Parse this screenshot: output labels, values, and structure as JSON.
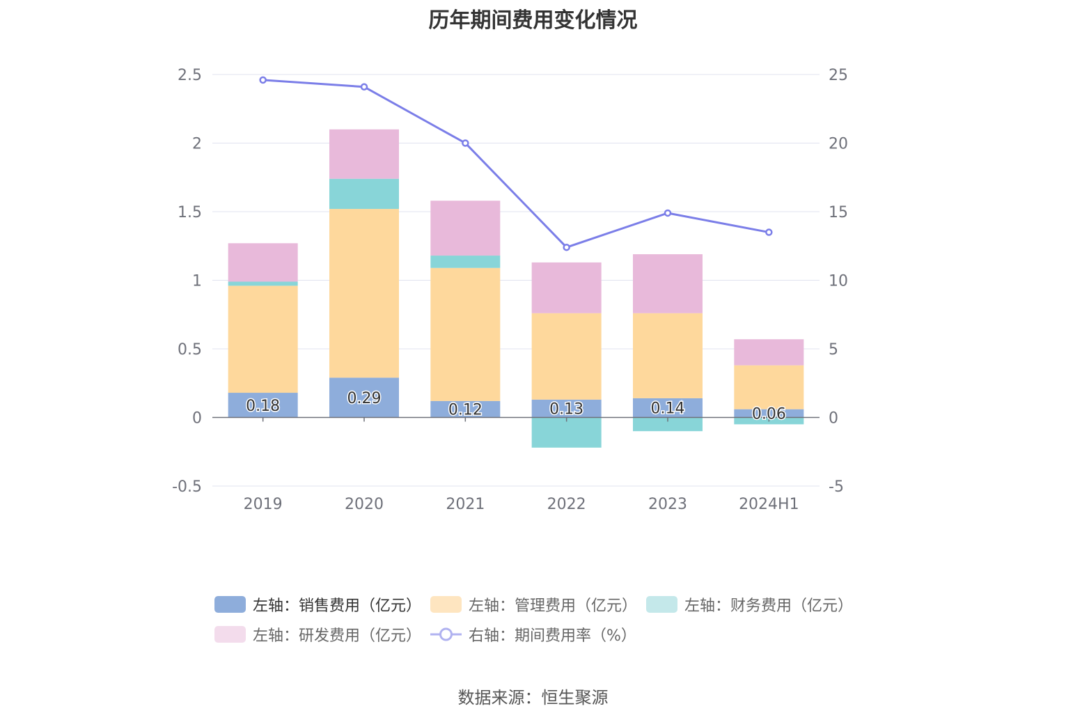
{
  "title": "历年期间费用变化情况",
  "source": "数据来源：恒生聚源",
  "chart_data": {
    "type": "bar",
    "stacked": true,
    "categories": [
      "2019",
      "2020",
      "2021",
      "2022",
      "2023",
      "2024H1"
    ],
    "y_left": {
      "ticks": [
        "2.5",
        "2",
        "1.5",
        "1",
        "0.5",
        "0",
        "-0.5"
      ],
      "range": [
        -0.5,
        2.5
      ]
    },
    "y_right": {
      "ticks": [
        "25",
        "20",
        "15",
        "10",
        "5",
        "0",
        "-5"
      ],
      "range": [
        -5,
        25
      ]
    },
    "series": [
      {
        "name": "左轴：销售费用（亿元）",
        "type": "bar",
        "axis": "left",
        "color": "#8eaddb",
        "values": [
          0.18,
          0.29,
          0.12,
          0.13,
          0.14,
          0.06
        ],
        "labels": [
          "0.18",
          "0.29",
          "0.12",
          "0.13",
          "0.14",
          "0.06"
        ]
      },
      {
        "name": "左轴：管理费用（亿元）",
        "type": "bar",
        "axis": "left",
        "color": "#fed89c",
        "values": [
          0.78,
          1.23,
          0.97,
          0.63,
          0.62,
          0.32
        ]
      },
      {
        "name": "左轴：财务费用（亿元）",
        "type": "bar",
        "axis": "left",
        "color": "#88d5d8",
        "values": [
          0.03,
          0.22,
          0.09,
          -0.22,
          -0.1,
          -0.05
        ]
      },
      {
        "name": "左轴：研发费用（亿元）",
        "type": "bar",
        "axis": "left",
        "color": "#e8b9da",
        "values": [
          0.28,
          0.36,
          0.4,
          0.37,
          0.43,
          0.19
        ]
      },
      {
        "name": "右轴：期间费用率（%）",
        "type": "line",
        "axis": "right",
        "color": "#7b7ee8",
        "values": [
          24.6,
          24.1,
          20.0,
          12.4,
          14.9,
          13.5
        ]
      }
    ]
  }
}
